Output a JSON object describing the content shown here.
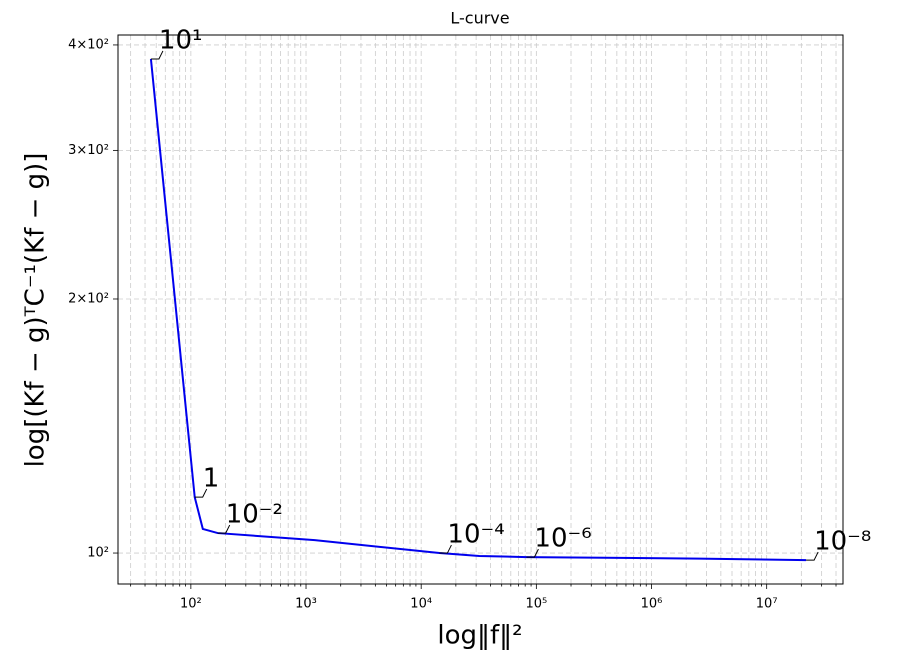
{
  "chart_data": {
    "type": "line",
    "title": "L-curve",
    "x_label": "log‖f‖²",
    "y_label": "log[(Kf − g)ᵀC⁻¹(Kf − g)]",
    "x_log": true,
    "y_log": true,
    "grid": true,
    "xlim": [
      23.3,
      46000000
    ],
    "ylim": [
      91.9,
      411
    ],
    "xticks": [
      {
        "value": 100,
        "label": "10²"
      },
      {
        "value": 1000,
        "label": "10³"
      },
      {
        "value": 10000,
        "label": "10⁴"
      },
      {
        "value": 100000,
        "label": "10⁵"
      },
      {
        "value": 1000000,
        "label": "10⁶"
      },
      {
        "value": 10000000,
        "label": "10⁷"
      }
    ],
    "xminorticks": [
      30,
      40,
      50,
      60,
      70,
      80,
      90,
      200,
      300,
      400,
      500,
      600,
      700,
      800,
      900,
      2000,
      3000,
      4000,
      5000,
      6000,
      7000,
      8000,
      9000,
      20000,
      30000,
      40000,
      50000,
      60000,
      70000,
      80000,
      90000,
      200000,
      300000,
      400000,
      500000,
      600000,
      700000,
      800000,
      900000,
      2000000,
      3000000,
      4000000,
      5000000,
      6000000,
      7000000,
      8000000,
      9000000,
      20000000,
      30000000,
      40000000
    ],
    "yticks": [
      {
        "value": 100,
        "label": "10²"
      },
      {
        "value": 200,
        "label": "2×10²"
      },
      {
        "value": 300,
        "label": "3×10²"
      },
      {
        "value": 400,
        "label": "4×10²"
      }
    ],
    "series": [
      {
        "color": "#0000ee",
        "x": [
          45,
          108,
          127,
          171,
          1190,
          14400,
          32000,
          82000,
          2600000,
          22000000
        ],
        "values": [
          385,
          116.5,
          106.8,
          105.6,
          103.6,
          100,
          99.2,
          98.9,
          98.5,
          98.1
        ]
      }
    ],
    "annotations": [
      {
        "text": "10¹",
        "x": 45,
        "y": 385
      },
      {
        "text": "1",
        "x": 108,
        "y": 116.5
      },
      {
        "text": "10⁻²",
        "x": 171,
        "y": 105.6
      },
      {
        "text": "10⁻⁴",
        "x": 14400,
        "y": 100
      },
      {
        "text": "10⁻⁶",
        "x": 82000,
        "y": 98.9
      },
      {
        "text": "10⁻⁸",
        "x": 22000000,
        "y": 98.1
      }
    ]
  }
}
